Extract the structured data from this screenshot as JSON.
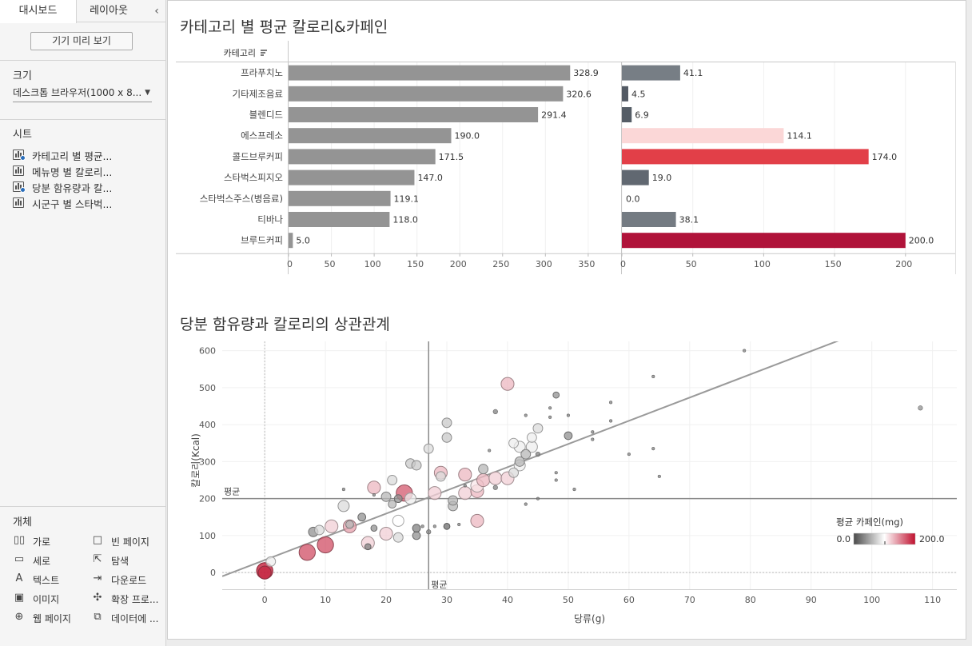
{
  "sidebar": {
    "tabs": [
      "대시보드",
      "레이아웃"
    ],
    "collapse_icon": "chevron-left-icon",
    "device_preview_label": "기기 미리 보기",
    "size_heading": "크기",
    "size_value": "데스크톱 브라우저(1000 x 8...",
    "sheets_heading": "시트",
    "sheets": [
      {
        "label": "카테고리 별 평균...",
        "used": true
      },
      {
        "label": "메뉴명 별 칼로리...",
        "used": false
      },
      {
        "label": "당분 함유량과 칼...",
        "used": true
      },
      {
        "label": "시군구 별 스타벅...",
        "used": false
      }
    ],
    "objects_heading": "개체",
    "objects": [
      {
        "label": "가로",
        "icon": "horizontal-container-icon",
        "glyph": "▯▯"
      },
      {
        "label": "빈 페이지",
        "icon": "blank-icon",
        "glyph": "□"
      },
      {
        "label": "세로",
        "icon": "vertical-container-icon",
        "glyph": "▭"
      },
      {
        "label": "탐색",
        "icon": "navigation-icon",
        "glyph": "⇱"
      },
      {
        "label": "텍스트",
        "icon": "text-icon",
        "glyph": "A"
      },
      {
        "label": "다운로드",
        "icon": "download-icon",
        "glyph": "⇥"
      },
      {
        "label": "이미지",
        "icon": "image-icon",
        "glyph": "▣"
      },
      {
        "label": "확장 프로...",
        "icon": "extension-icon",
        "glyph": "✣"
      },
      {
        "label": "웹 페이지",
        "icon": "globe-icon",
        "glyph": "⊕"
      },
      {
        "label": "데이터에 ...",
        "icon": "ask-data-icon",
        "glyph": "⧉"
      }
    ]
  },
  "dashboard": {
    "bar_title": "카테고리 별 평균 칼로리&카페인",
    "scatter_title": "당분 함유량과 칼로리의 상관관계"
  },
  "chart_data": [
    {
      "type": "bar",
      "header": "카테고리",
      "categories": [
        "프라푸치노",
        "기타제조음료",
        "블렌디드",
        "에스프레소",
        "콜드브루커피",
        "스타벅스피지오",
        "스타벅스주스(병음료)",
        "티바나",
        "브루드커피"
      ],
      "series": [
        {
          "name": "",
          "values": [
            328.9,
            320.6,
            291.4,
            190.0,
            171.5,
            147.0,
            119.1,
            118.0,
            5.0
          ],
          "color": "#949494"
        },
        {
          "name": "",
          "values": [
            41.1,
            4.5,
            6.9,
            114.1,
            174.0,
            19.0,
            0.0,
            38.1,
            200.0
          ]
        }
      ],
      "value_labels": [
        [
          "328.9",
          "320.6",
          "291.4",
          "190.0",
          "171.5",
          "147.0",
          "119.1",
          "118.0",
          "5.0"
        ],
        [
          "41.1",
          "4.5",
          "6.9",
          "114.1",
          "174.0",
          "19.0",
          "0.0",
          "38.1",
          "200.0"
        ]
      ],
      "axis1": {
        "ticks": [
          0,
          50,
          100,
          150,
          200,
          250,
          300,
          350
        ],
        "range": [
          0,
          380
        ]
      },
      "axis2": {
        "ticks": [
          0,
          50,
          100,
          150,
          200
        ],
        "range": [
          0,
          230
        ]
      }
    },
    {
      "type": "scatter",
      "xlabel": "당류(g)",
      "ylabel": "칼로리(Kcal)",
      "xlim": [
        -7,
        114
      ],
      "ylim": [
        -45,
        625
      ],
      "xticks": [
        0,
        10,
        20,
        30,
        40,
        50,
        60,
        70,
        80,
        90,
        100,
        110
      ],
      "yticks": [
        0,
        100,
        200,
        300,
        400,
        500,
        600
      ],
      "average_x": 27,
      "average_y": 200,
      "average_x_label": "평균",
      "average_y_label": "평균",
      "trend_line": [
        [
          -7,
          -10
        ],
        [
          95,
          630
        ]
      ],
      "legend": {
        "title": "평균 카페인(mg)",
        "min_label": "0.0",
        "max_label": "200.0",
        "min_color": "#4a4a4a",
        "mid_color": "#ffffff",
        "max_color": "#c0102e"
      },
      "points": [
        {
          "x": 0,
          "y": 5,
          "c": 200,
          "s": 9
        },
        {
          "x": 0,
          "y": 0,
          "c": 190,
          "s": 7
        },
        {
          "x": 1,
          "y": 30,
          "c": 90,
          "s": 5
        },
        {
          "x": 7,
          "y": 55,
          "c": 174,
          "s": 9
        },
        {
          "x": 10,
          "y": 75,
          "c": 174,
          "s": 9
        },
        {
          "x": 8,
          "y": 110,
          "c": 40,
          "s": 5
        },
        {
          "x": 9,
          "y": 115,
          "c": 80,
          "s": 5
        },
        {
          "x": 11,
          "y": 125,
          "c": 120,
          "s": 7
        },
        {
          "x": 13,
          "y": 180,
          "c": 80,
          "s": 6
        },
        {
          "x": 14,
          "y": 125,
          "c": 140,
          "s": 7
        },
        {
          "x": 14,
          "y": 130,
          "c": 60,
          "s": 4
        },
        {
          "x": 13,
          "y": 225,
          "c": 30,
          "s": 1
        },
        {
          "x": 16,
          "y": 150,
          "c": 40,
          "s": 4
        },
        {
          "x": 17,
          "y": 80,
          "c": 120,
          "s": 7
        },
        {
          "x": 17,
          "y": 70,
          "c": 30,
          "s": 3
        },
        {
          "x": 18,
          "y": 230,
          "c": 130,
          "s": 7
        },
        {
          "x": 18,
          "y": 210,
          "c": 30,
          "s": 1
        },
        {
          "x": 18,
          "y": 120,
          "c": 40,
          "s": 3
        },
        {
          "x": 20,
          "y": 105,
          "c": 120,
          "s": 7
        },
        {
          "x": 20,
          "y": 205,
          "c": 60,
          "s": 5
        },
        {
          "x": 21,
          "y": 250,
          "c": 80,
          "s": 5
        },
        {
          "x": 21,
          "y": 185,
          "c": 60,
          "s": 4
        },
        {
          "x": 22,
          "y": 95,
          "c": 80,
          "s": 5
        },
        {
          "x": 22,
          "y": 140,
          "c": 100,
          "s": 6
        },
        {
          "x": 22,
          "y": 200,
          "c": 40,
          "s": 4
        },
        {
          "x": 23,
          "y": 215,
          "c": 170,
          "s": 9
        },
        {
          "x": 24,
          "y": 200,
          "c": 90,
          "s": 6
        },
        {
          "x": 24,
          "y": 295,
          "c": 70,
          "s": 5
        },
        {
          "x": 25,
          "y": 290,
          "c": 70,
          "s": 5
        },
        {
          "x": 25,
          "y": 100,
          "c": 40,
          "s": 4
        },
        {
          "x": 25,
          "y": 120,
          "c": 30,
          "s": 4
        },
        {
          "x": 26,
          "y": 125,
          "c": 30,
          "s": 1
        },
        {
          "x": 27,
          "y": 110,
          "c": 30,
          "s": 2
        },
        {
          "x": 27,
          "y": 335,
          "c": 80,
          "s": 5
        },
        {
          "x": 28,
          "y": 215,
          "c": 120,
          "s": 7
        },
        {
          "x": 28,
          "y": 125,
          "c": 30,
          "s": 1
        },
        {
          "x": 29,
          "y": 260,
          "c": 80,
          "s": 5
        },
        {
          "x": 29,
          "y": 270,
          "c": 130,
          "s": 7
        },
        {
          "x": 30,
          "y": 405,
          "c": 70,
          "s": 5
        },
        {
          "x": 30,
          "y": 365,
          "c": 70,
          "s": 5
        },
        {
          "x": 30,
          "y": 125,
          "c": 20,
          "s": 3
        },
        {
          "x": 31,
          "y": 180,
          "c": 60,
          "s": 5
        },
        {
          "x": 31,
          "y": 195,
          "c": 60,
          "s": 5
        },
        {
          "x": 32,
          "y": 130,
          "c": 30,
          "s": 1
        },
        {
          "x": 33,
          "y": 265,
          "c": 130,
          "s": 7
        },
        {
          "x": 33,
          "y": 215,
          "c": 120,
          "s": 7
        },
        {
          "x": 33,
          "y": 235,
          "c": 30,
          "s": 1
        },
        {
          "x": 35,
          "y": 140,
          "c": 130,
          "s": 7
        },
        {
          "x": 35,
          "y": 220,
          "c": 130,
          "s": 7
        },
        {
          "x": 35,
          "y": 235,
          "c": 110,
          "s": 7
        },
        {
          "x": 36,
          "y": 280,
          "c": 60,
          "s": 5
        },
        {
          "x": 36,
          "y": 250,
          "c": 130,
          "s": 7
        },
        {
          "x": 37,
          "y": 330,
          "c": 30,
          "s": 1
        },
        {
          "x": 38,
          "y": 435,
          "c": 30,
          "s": 2
        },
        {
          "x": 38,
          "y": 255,
          "c": 120,
          "s": 7
        },
        {
          "x": 38,
          "y": 230,
          "c": 30,
          "s": 2
        },
        {
          "x": 40,
          "y": 255,
          "c": 120,
          "s": 7
        },
        {
          "x": 40,
          "y": 510,
          "c": 130,
          "s": 7
        },
        {
          "x": 41,
          "y": 270,
          "c": 80,
          "s": 5
        },
        {
          "x": 41,
          "y": 350,
          "c": 90,
          "s": 5
        },
        {
          "x": 42,
          "y": 300,
          "c": 60,
          "s": 5
        },
        {
          "x": 42,
          "y": 340,
          "c": 90,
          "s": 6
        },
        {
          "x": 42,
          "y": 290,
          "c": 90,
          "s": 6
        },
        {
          "x": 43,
          "y": 425,
          "c": 30,
          "s": 1
        },
        {
          "x": 43,
          "y": 185,
          "c": 30,
          "s": 1
        },
        {
          "x": 43,
          "y": 320,
          "c": 60,
          "s": 5
        },
        {
          "x": 44,
          "y": 340,
          "c": 90,
          "s": 6
        },
        {
          "x": 44,
          "y": 365,
          "c": 90,
          "s": 5
        },
        {
          "x": 45,
          "y": 390,
          "c": 80,
          "s": 5
        },
        {
          "x": 45,
          "y": 320,
          "c": 30,
          "s": 2
        },
        {
          "x": 45,
          "y": 200,
          "c": 30,
          "s": 1
        },
        {
          "x": 47,
          "y": 420,
          "c": 30,
          "s": 1
        },
        {
          "x": 47,
          "y": 445,
          "c": 30,
          "s": 1
        },
        {
          "x": 48,
          "y": 480,
          "c": 40,
          "s": 3
        },
        {
          "x": 48,
          "y": 270,
          "c": 30,
          "s": 1
        },
        {
          "x": 48,
          "y": 250,
          "c": 30,
          "s": 1
        },
        {
          "x": 50,
          "y": 370,
          "c": 40,
          "s": 4
        },
        {
          "x": 50,
          "y": 425,
          "c": 30,
          "s": 1
        },
        {
          "x": 51,
          "y": 225,
          "c": 30,
          "s": 1
        },
        {
          "x": 54,
          "y": 380,
          "c": 30,
          "s": 1
        },
        {
          "x": 54,
          "y": 360,
          "c": 30,
          "s": 1
        },
        {
          "x": 57,
          "y": 460,
          "c": 30,
          "s": 1
        },
        {
          "x": 57,
          "y": 410,
          "c": 30,
          "s": 1
        },
        {
          "x": 60,
          "y": 320,
          "c": 30,
          "s": 1
        },
        {
          "x": 64,
          "y": 530,
          "c": 30,
          "s": 1
        },
        {
          "x": 64,
          "y": 335,
          "c": 30,
          "s": 1
        },
        {
          "x": 65,
          "y": 260,
          "c": 30,
          "s": 1
        },
        {
          "x": 79,
          "y": 600,
          "c": 30,
          "s": 1
        },
        {
          "x": 108,
          "y": 445,
          "c": 40,
          "s": 2
        }
      ]
    }
  ]
}
